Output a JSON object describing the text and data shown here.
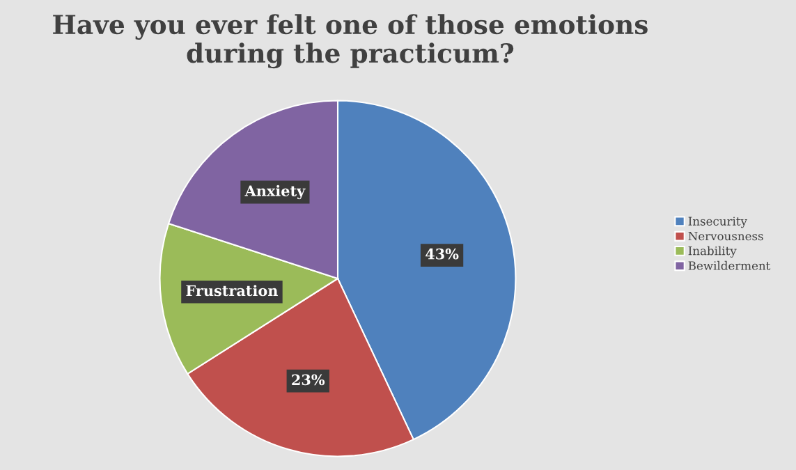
{
  "chart_data": {
    "type": "pie",
    "title": "Have you ever felt one of those emotions\nduring the practicum?",
    "categories": [
      "Insecurity",
      "Nervousness",
      "Inability",
      "Bewilderment"
    ],
    "values": [
      43,
      23,
      14,
      20
    ],
    "colors": [
      "#4f81bd",
      "#c0504d",
      "#9bbb59",
      "#8064a2"
    ],
    "value_labels": [
      "43%",
      "23%",
      "Frustration",
      "Anxiety"
    ],
    "legend": "right"
  }
}
